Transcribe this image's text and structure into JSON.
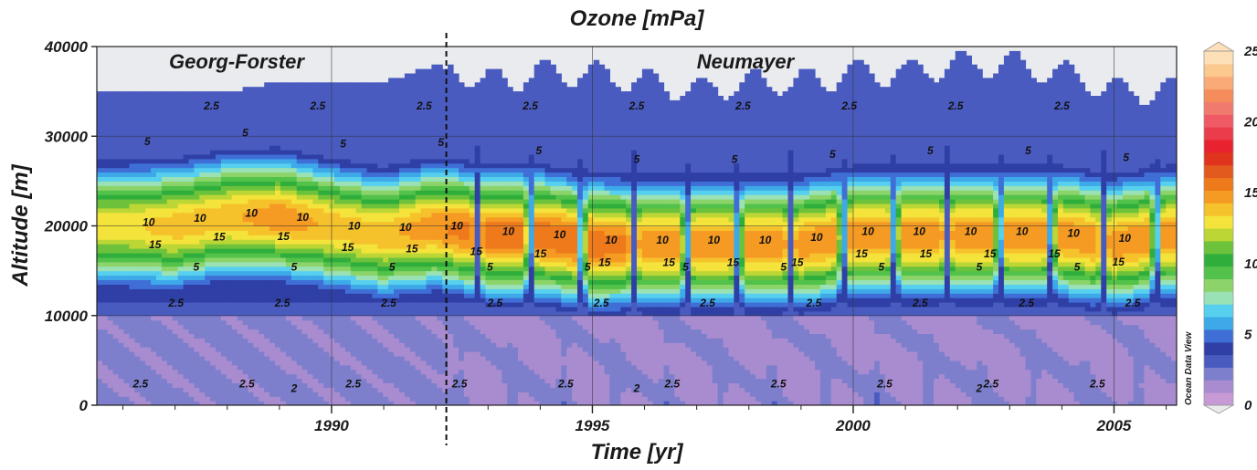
{
  "chart_data": {
    "type": "heatmap",
    "title": "Ozone [mPa]",
    "xlabel": "Time [yr]",
    "ylabel": "Altitude [m]",
    "xlim": [
      1985.5,
      2006.2
    ],
    "ylim": [
      0,
      40000
    ],
    "x_ticks": [
      1990,
      1995,
      2000,
      2005
    ],
    "y_ticks": [
      0,
      10000,
      20000,
      30000,
      40000
    ],
    "grid": true,
    "colorbar": {
      "range": [
        0,
        25
      ],
      "ticks": [
        0,
        5,
        10,
        15,
        20,
        25
      ],
      "colors": [
        "#c79ad6",
        "#a98cd0",
        "#7e7fcc",
        "#4a5bc0",
        "#2f3fa6",
        "#3f6fd6",
        "#3ea9e8",
        "#56d0ee",
        "#9ae2b6",
        "#8cd46a",
        "#52c24a",
        "#2fae3c",
        "#6cc23a",
        "#bcd636",
        "#f3e33a",
        "#f6c22c",
        "#f59a22",
        "#ee7a1c",
        "#e35a1e",
        "#e0341e",
        "#e8222e",
        "#ea3c4a",
        "#f05a64",
        "#f07a6e",
        "#f48c5c",
        "#f9aa76",
        "#fbc88e",
        "#fde0b8"
      ]
    },
    "station_labels": [
      "Georg-Forster",
      "Neumayer"
    ],
    "station_change_year": 1992.2,
    "contour_levels": [
      2.5,
      5,
      10,
      15
    ],
    "annual_cycle": {
      "description": "Ozone partial pressure by year (approximate values)",
      "years": [
        1986,
        1987,
        1988,
        1989,
        1990,
        1991,
        1992,
        1993,
        1994,
        1995,
        1996,
        1997,
        1998,
        1999,
        2000,
        2001,
        2002,
        2003,
        2004,
        2005,
        2006
      ],
      "peak_ozone_mPa": [
        13,
        14,
        14,
        15,
        14,
        14,
        15,
        16,
        16,
        16,
        15,
        15,
        15,
        15,
        15,
        15,
        15,
        15,
        15,
        15,
        15
      ],
      "peak_altitude_m": [
        20000,
        20000,
        21000,
        21000,
        20000,
        19000,
        20000,
        19000,
        19000,
        18000,
        18000,
        18000,
        18000,
        18000,
        19000,
        19000,
        19000,
        19000,
        19000,
        18000,
        19000
      ],
      "tropopause_altitude_m": 10000,
      "top_of_data_altitude_m": [
        35000,
        35000,
        35000,
        36000,
        36000,
        36000,
        38000,
        36000,
        37000,
        37000,
        36000,
        35000,
        36000,
        36000,
        37000,
        37000,
        38000,
        38000,
        37000,
        35000,
        35000
      ]
    },
    "contour_labels": [
      "10",
      "10",
      "10",
      "10",
      "10",
      "10",
      "10",
      "10",
      "10",
      "10",
      "10",
      "10",
      "10",
      "10",
      "10",
      "10",
      "10",
      "10",
      "10",
      "10",
      "15",
      "15",
      "15",
      "15",
      "15",
      "15",
      "15",
      "15",
      "15",
      "15",
      "15",
      "15",
      "15",
      "15",
      "15",
      "15",
      "5",
      "5",
      "5",
      "5",
      "5",
      "5",
      "5",
      "5",
      "5",
      "5",
      "5",
      "5",
      "5",
      "5",
      "5",
      "5",
      "5",
      "5",
      "5",
      "5",
      "5",
      "2.5",
      "2.5",
      "2.5",
      "2.5",
      "2.5",
      "2.5",
      "2.5",
      "2.5",
      "2.5",
      "2.5",
      "2.5",
      "2.5",
      "2.5",
      "2.5",
      "2.5",
      "2.5",
      "2.5",
      "2.5",
      "2.5",
      "2.5",
      "2.5",
      "2.5",
      "2.5",
      "2.5",
      "2.5",
      "2.5",
      "2.5",
      "2.5",
      "2.5",
      "2",
      "2",
      "2"
    ],
    "credit": "Ocean Data View"
  }
}
